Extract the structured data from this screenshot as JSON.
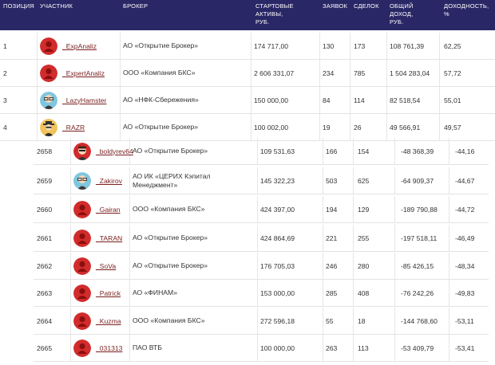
{
  "header": {
    "position": "ПОЗИЦИЯ",
    "participant": "УЧАСТНИК",
    "broker": "БРОКЕР",
    "start_assets_l1": "СТАРТОВЫЕ",
    "start_assets_l2": "АКТИВЫ,",
    "start_assets_l3": "РУБ.",
    "orders": "ЗАЯВОК",
    "deals": "СДЕЛОК",
    "income_l1": "ОБЩИЙ",
    "income_l2": "ДОХОД,",
    "income_l3": "РУБ.",
    "yield_l1": "ДОХОДНОСТЬ,",
    "yield_l2": "%"
  },
  "rows": [
    {
      "pos": "1",
      "name": "_ExpAnaliz",
      "avatar": "red-avatar-icon",
      "broker": "АО «Открытие Брокер»",
      "assets": "174 717,00",
      "orders": "130",
      "deals": "173",
      "income": "108 761,39",
      "yield": "62,25"
    },
    {
      "pos": "2",
      "name": "_ExpertAnaliz",
      "avatar": "red-avatar-icon",
      "broker": "ООО «Компания БКС»",
      "assets": "2 606 331,07",
      "orders": "234",
      "deals": "785",
      "income": "1 504 283,04",
      "yield": "57,72"
    },
    {
      "pos": "3",
      "name": "_LazyHamster",
      "avatar": "glasses-avatar-icon",
      "broker": "АО «НФК-Сбережения»",
      "assets": "150 000,00",
      "orders": "84",
      "deals": "114",
      "income": "82 518,54",
      "yield": "55,01"
    },
    {
      "pos": "4",
      "name": "_RAZR",
      "avatar": "hat-avatar-icon",
      "broker": "АО «Открытие Брокер»",
      "assets": "100 002,00",
      "orders": "19",
      "deals": "26",
      "income": "49 566,91",
      "yield": "49,57"
    },
    {
      "pos": "2658",
      "name": "_boldyrev64",
      "avatar": "dark-avatar-icon",
      "broker": "АО «Открытие Брокер»",
      "assets": "109 531,63",
      "orders": "166",
      "deals": "154",
      "income": "-48 368,39",
      "yield": "-44,16"
    },
    {
      "pos": "2659",
      "name": "_Zakirov",
      "avatar": "glasses-avatar-icon",
      "broker": "АО ИК «ЦЕРИХ Кэпитал Менеджмент»",
      "assets": "145 322,23",
      "orders": "503",
      "deals": "625",
      "income": "-64 909,37",
      "yield": "-44,67"
    },
    {
      "pos": "2660",
      "name": "_Gairan",
      "avatar": "red-avatar-icon",
      "broker": "ООО «Компания БКС»",
      "assets": "424 397,00",
      "orders": "194",
      "deals": "129",
      "income": "-189 790,88",
      "yield": "-44,72"
    },
    {
      "pos": "2661",
      "name": "_TARAN",
      "avatar": "red-avatar-icon",
      "broker": "АО «Открытие Брокер»",
      "assets": "424 864,69",
      "orders": "221",
      "deals": "255",
      "income": "-197 518,11",
      "yield": "-46,49"
    },
    {
      "pos": "2662",
      "name": "_SoVa",
      "avatar": "red-avatar-icon",
      "broker": "АО «Открытие Брокер»",
      "assets": "176 705,03",
      "orders": "246",
      "deals": "280",
      "income": "-85 426,15",
      "yield": "-48,34"
    },
    {
      "pos": "2663",
      "name": "_Patrick",
      "avatar": "red-avatar-icon",
      "broker": "АО «ФИНАМ»",
      "assets": "153 000,00",
      "orders": "285",
      "deals": "408",
      "income": "-76 242,26",
      "yield": "-49,83"
    },
    {
      "pos": "2664",
      "name": "_Kuzma",
      "avatar": "red-avatar-icon",
      "broker": "ООО «Компания БКС»",
      "assets": "272 596,18",
      "orders": "55",
      "deals": "18",
      "income": "-144 768,60",
      "yield": "-53,11"
    },
    {
      "pos": "2665",
      "name": "_031313",
      "avatar": "red-avatar-icon",
      "broker": "ПАО ВТБ",
      "assets": "100 000,00",
      "orders": "263",
      "deals": "113",
      "income": "-53 409,79",
      "yield": "-53,41"
    }
  ]
}
